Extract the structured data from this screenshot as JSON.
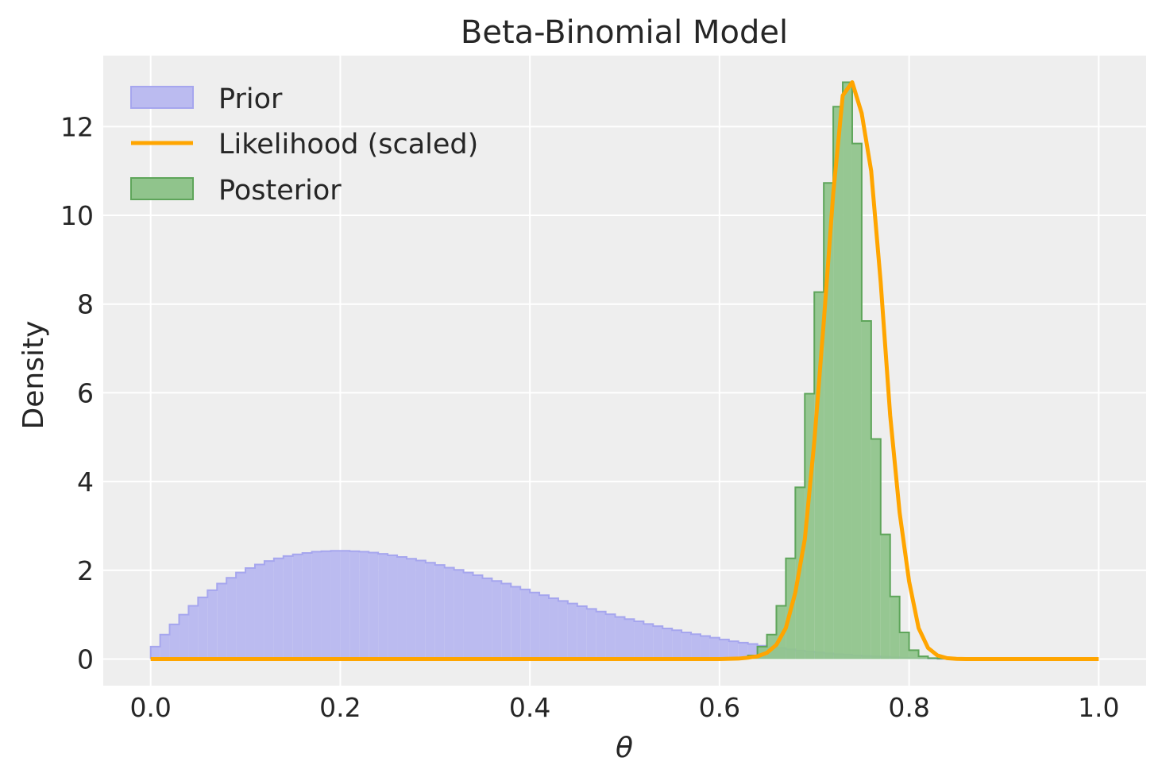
{
  "chart_data": {
    "type": "histogram_line",
    "title": "Beta-Binomial Model",
    "xlabel": "θ",
    "ylabel": "Density",
    "xlim": [
      -0.05,
      1.05
    ],
    "ylim": [
      -0.6,
      13.6
    ],
    "xticks": [
      0.0,
      0.2,
      0.4,
      0.6,
      0.8,
      1.0
    ],
    "xtick_labels": [
      "0.0",
      "0.2",
      "0.4",
      "0.6",
      "0.8",
      "1.0"
    ],
    "yticks": [
      0,
      2,
      4,
      6,
      8,
      10,
      12
    ],
    "ytick_labels": [
      "0",
      "2",
      "4",
      "6",
      "8",
      "10",
      "12"
    ],
    "grid": true,
    "legend_position": "top-left",
    "colors": {
      "background": "#eeeeee",
      "prior_fill": "#bbbbf0",
      "prior_edge": "#a6a6ee",
      "posterior_fill": "#90c48c",
      "posterior_edge": "#5ea55a",
      "likelihood": "#ffa500"
    },
    "series": [
      {
        "name": "Prior",
        "kind": "step-fill",
        "bin_edges": [
          0.0,
          0.01,
          0.02,
          0.03,
          0.04,
          0.05,
          0.06,
          0.07,
          0.08,
          0.09,
          0.1,
          0.11,
          0.12,
          0.13,
          0.14,
          0.15,
          0.16,
          0.17,
          0.18,
          0.19,
          0.2,
          0.21,
          0.22,
          0.23,
          0.24,
          0.25,
          0.26,
          0.27,
          0.28,
          0.29,
          0.3,
          0.31,
          0.32,
          0.33,
          0.34,
          0.35,
          0.36,
          0.37,
          0.38,
          0.39,
          0.4,
          0.41,
          0.42,
          0.43,
          0.44,
          0.45,
          0.46,
          0.47,
          0.48,
          0.49,
          0.5,
          0.51,
          0.52,
          0.53,
          0.54,
          0.55,
          0.56,
          0.57,
          0.58,
          0.59,
          0.6,
          0.61,
          0.62,
          0.63,
          0.64,
          0.65,
          0.66,
          0.67,
          0.68,
          0.69,
          0.7,
          0.71,
          0.72,
          0.73,
          0.74,
          0.75,
          0.76,
          0.77,
          0.78,
          0.79,
          0.8,
          0.81,
          0.82,
          0.83,
          0.84,
          0.85
        ],
        "values": [
          0.28,
          0.55,
          0.78,
          1.0,
          1.2,
          1.39,
          1.55,
          1.7,
          1.83,
          1.95,
          2.05,
          2.13,
          2.21,
          2.27,
          2.32,
          2.36,
          2.39,
          2.42,
          2.43,
          2.44,
          2.44,
          2.43,
          2.42,
          2.4,
          2.37,
          2.34,
          2.3,
          2.26,
          2.22,
          2.17,
          2.12,
          2.06,
          2.01,
          1.95,
          1.89,
          1.82,
          1.76,
          1.7,
          1.63,
          1.57,
          1.5,
          1.44,
          1.37,
          1.31,
          1.25,
          1.19,
          1.13,
          1.07,
          1.01,
          0.95,
          0.9,
          0.85,
          0.79,
          0.74,
          0.69,
          0.65,
          0.6,
          0.56,
          0.52,
          0.48,
          0.44,
          0.4,
          0.37,
          0.34,
          0.3,
          0.27,
          0.25,
          0.22,
          0.19,
          0.17,
          0.15,
          0.13,
          0.11,
          0.1,
          0.08,
          0.07,
          0.06,
          0.05,
          0.04,
          0.03,
          0.02,
          0.015,
          0.01,
          0.005,
          0.002
        ]
      },
      {
        "name": "Likelihood (scaled)",
        "kind": "line",
        "x": [
          0.0,
          0.6,
          0.62,
          0.63,
          0.64,
          0.65,
          0.66,
          0.67,
          0.68,
          0.69,
          0.7,
          0.71,
          0.72,
          0.73,
          0.74,
          0.75,
          0.76,
          0.77,
          0.78,
          0.79,
          0.8,
          0.81,
          0.82,
          0.83,
          0.84,
          0.85,
          0.86,
          0.9,
          1.0
        ],
        "y": [
          0.0,
          0.0,
          0.01,
          0.03,
          0.06,
          0.14,
          0.32,
          0.7,
          1.5,
          2.7,
          4.9,
          7.6,
          10.5,
          12.7,
          13.0,
          12.3,
          11.0,
          8.5,
          5.5,
          3.3,
          1.75,
          0.7,
          0.25,
          0.08,
          0.02,
          0.005,
          0.0,
          0.0,
          0.0
        ]
      },
      {
        "name": "Posterior",
        "kind": "step-fill",
        "bin_edges": [
          0.63,
          0.64,
          0.65,
          0.66,
          0.67,
          0.68,
          0.69,
          0.7,
          0.71,
          0.72,
          0.73,
          0.74,
          0.75,
          0.76,
          0.77,
          0.78,
          0.79,
          0.8,
          0.81,
          0.82,
          0.83,
          0.84,
          0.85
        ],
        "values": [
          0.08,
          0.28,
          0.55,
          1.2,
          2.27,
          3.87,
          5.98,
          8.27,
          10.73,
          12.45,
          13.0,
          11.62,
          7.62,
          4.96,
          2.81,
          1.41,
          0.6,
          0.2,
          0.06,
          0.02,
          0.01,
          0.002
        ]
      }
    ]
  }
}
